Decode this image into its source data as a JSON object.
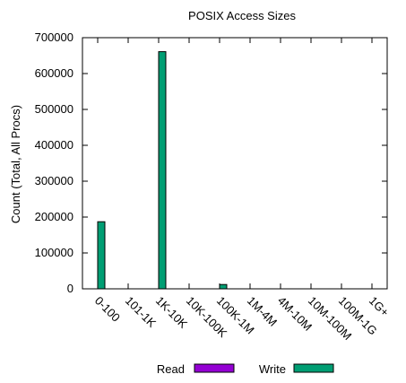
{
  "chart_data": {
    "type": "bar",
    "title": "POSIX Access Sizes",
    "xlabel": "",
    "ylabel": "Count (Total, All Procs)",
    "ylim": [
      0,
      700000
    ],
    "yticks": [
      0,
      100000,
      200000,
      300000,
      400000,
      500000,
      600000,
      700000
    ],
    "ytick_labels": [
      "0",
      "100000",
      "200000",
      "300000",
      "400000",
      "500000",
      "600000",
      "700000"
    ],
    "categories": [
      "0-100",
      "101-1K",
      "1K-10K",
      "10K-100K",
      "100K-1M",
      "1M-4M",
      "4M-10M",
      "10M-100M",
      "100M-1G",
      "1G+"
    ],
    "series": [
      {
        "name": "Read",
        "color": "#9400d3",
        "values": [
          0,
          0,
          0,
          0,
          0,
          0,
          0,
          0,
          0,
          0
        ]
      },
      {
        "name": "Write",
        "color": "#009e73",
        "values": [
          187000,
          0,
          661000,
          0,
          12000,
          0,
          0,
          0,
          0,
          0
        ]
      }
    ],
    "grid": false,
    "legend_position": "bottom"
  }
}
